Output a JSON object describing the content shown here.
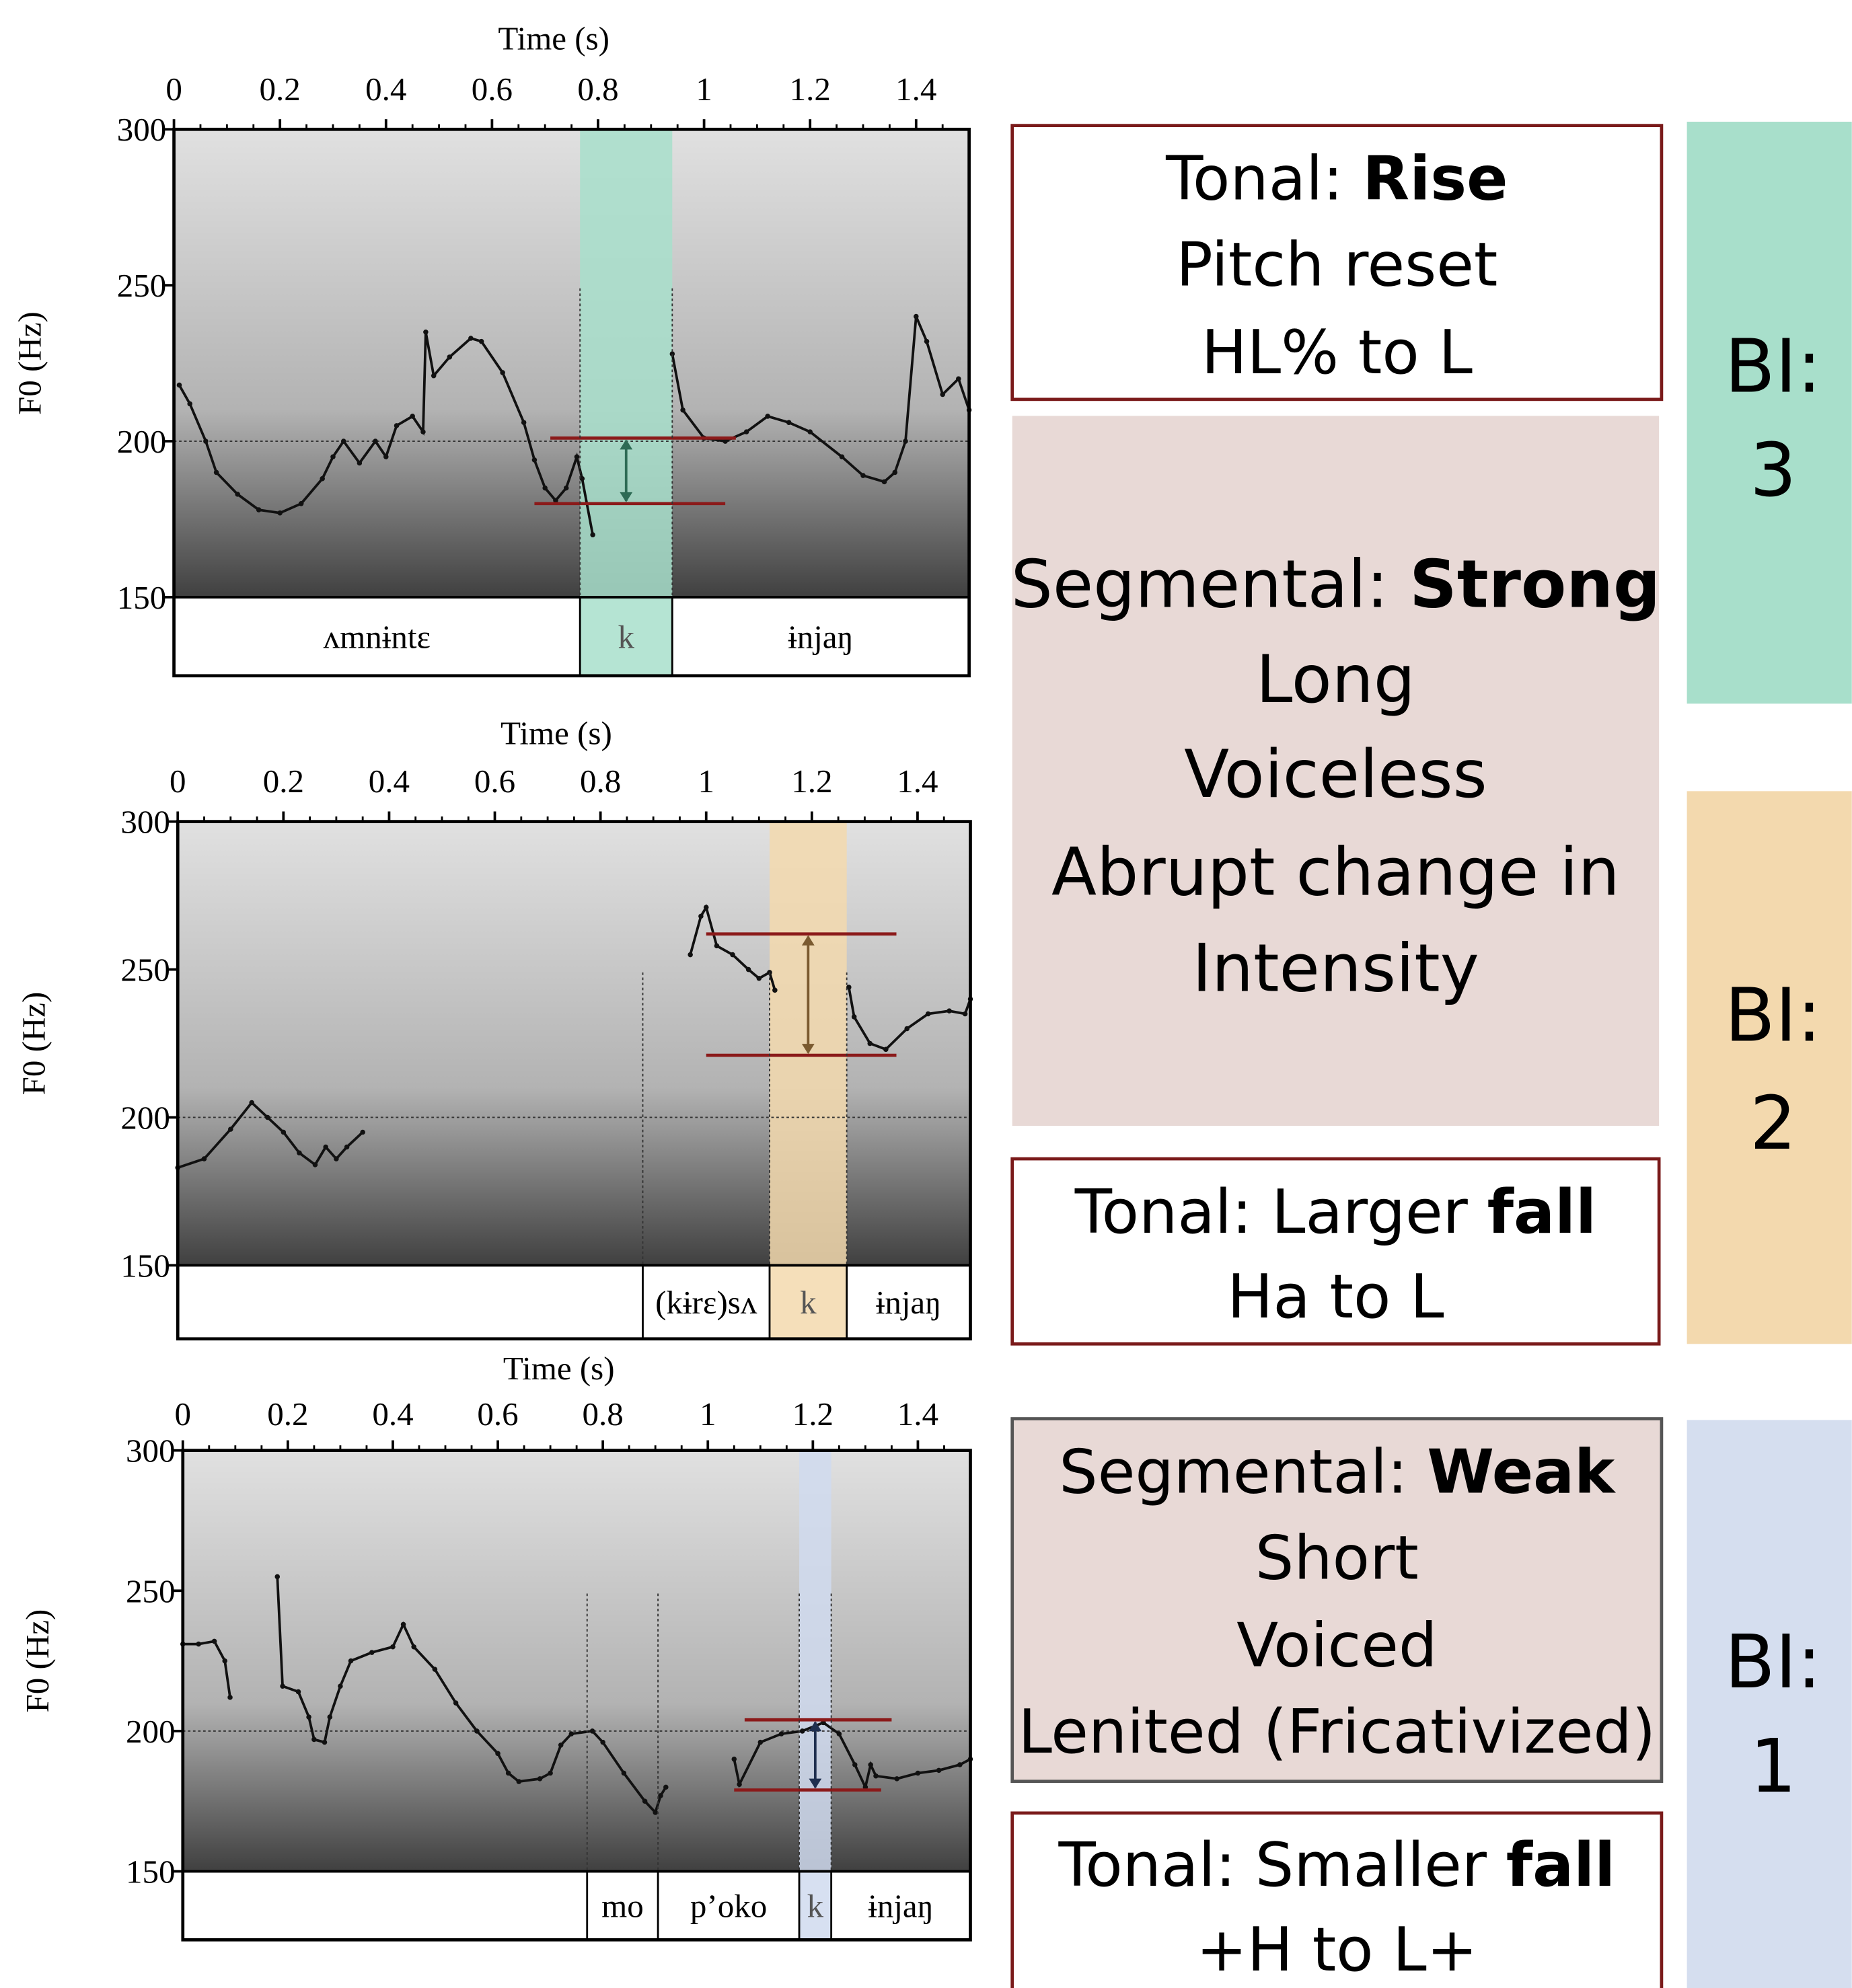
{
  "chart_data": [
    {
      "type": "line",
      "x_label": "Time (s)",
      "y_label": "F0 (Hz)",
      "xlim": [
        0,
        1.5
      ],
      "ylim": [
        150,
        300
      ],
      "xticks": [
        0,
        0.2,
        0.4,
        0.6,
        0.8,
        1,
        1.2,
        1.4
      ],
      "yticks": [
        150,
        200,
        250,
        300
      ],
      "hline": 200,
      "color": "#111111",
      "x": [
        0.01,
        0.03,
        0.06,
        0.08,
        0.12,
        0.16,
        0.2,
        0.24,
        0.28,
        0.3,
        0.32,
        0.35,
        0.38,
        0.4,
        0.42,
        0.45,
        0.47,
        0.475,
        0.49,
        0.52,
        0.56,
        0.58,
        0.62,
        0.66,
        0.68,
        0.7,
        0.72,
        0.74,
        0.76,
        0.77,
        0.79,
        0.85,
        0.94,
        0.96,
        1.0,
        1.04,
        1.08,
        1.12,
        1.16,
        1.2,
        1.26,
        1.3,
        1.34,
        1.36,
        1.38,
        1.4,
        1.42,
        1.45,
        1.48,
        1.5
      ],
      "values": [
        218,
        212,
        200,
        190,
        183,
        178,
        177,
        180,
        188,
        195,
        200,
        193,
        200,
        195,
        205,
        208,
        203,
        235,
        221,
        227,
        233,
        232,
        222,
        206,
        194,
        185,
        181,
        185,
        195,
        188,
        170,
        null,
        228,
        210,
        201,
        200,
        203,
        208,
        206,
        203,
        195,
        189,
        187,
        190,
        200,
        240,
        232,
        215,
        220,
        210
      ],
      "segments": [
        {
          "label": "ʌmnɨntɛ",
          "start": 0,
          "end": 0.766
        },
        {
          "label": "k",
          "start": 0.766,
          "end": 0.94,
          "color": "#a8dfcb"
        },
        {
          "label": "ɨnjaŋ",
          "start": 0.94,
          "end": 1.5
        }
      ],
      "ref_lines": [
        {
          "value": 201,
          "from": 0.71,
          "to": 1.06
        },
        {
          "value": 180,
          "from": 0.68,
          "to": 1.04
        }
      ],
      "ref_color": "#8b1a1a",
      "arrow_color": "#2e6b55"
    },
    {
      "type": "line",
      "x_label": "Time (s)",
      "y_label": "F0 (Hz)",
      "xlim": [
        0,
        1.5
      ],
      "ylim": [
        150,
        300
      ],
      "xticks": [
        0,
        0.2,
        0.4,
        0.6,
        0.8,
        1,
        1.2,
        1.4
      ],
      "yticks": [
        150,
        200,
        250,
        300
      ],
      "hline": 200,
      "color": "#111111",
      "x": [
        0,
        0.05,
        0.1,
        0.14,
        0.17,
        0.2,
        0.23,
        0.26,
        0.28,
        0.3,
        0.32,
        0.35,
        0.6,
        0.97,
        0.99,
        1.0,
        1.02,
        1.05,
        1.08,
        1.1,
        1.12,
        1.13,
        1.2,
        1.27,
        1.28,
        1.31,
        1.34,
        1.38,
        1.42,
        1.46,
        1.49,
        1.5
      ],
      "values": [
        183,
        186,
        196,
        205,
        200,
        195,
        188,
        184,
        190,
        186,
        190,
        195,
        null,
        255,
        268,
        271,
        258,
        255,
        250,
        247,
        249,
        243,
        null,
        244,
        234,
        225,
        223,
        230,
        235,
        236,
        235,
        240
      ],
      "segments": [
        {
          "label": null,
          "start": 0,
          "end": 0.88
        },
        {
          "label": "(kɨrɛ)sʌ",
          "start": 0.88,
          "end": 1.12
        },
        {
          "label": "k",
          "start": 1.12,
          "end": 1.266,
          "color": "#f3d9ae"
        },
        {
          "label": "ɨnjaŋ",
          "start": 1.266,
          "end": 1.5
        }
      ],
      "ref_lines": [
        {
          "value": 262,
          "from": 1.0,
          "to": 1.36
        },
        {
          "value": 221,
          "from": 1.0,
          "to": 1.36
        }
      ],
      "ref_color": "#8b1a1a",
      "arrow_color": "#7a5a30"
    },
    {
      "type": "line",
      "x_label": "Time (s)",
      "y_label": "F0 (Hz)",
      "xlim": [
        0,
        1.5
      ],
      "ylim": [
        150,
        300
      ],
      "xticks": [
        0,
        0.2,
        0.4,
        0.6,
        0.8,
        1,
        1.2,
        1.4
      ],
      "yticks": [
        150,
        200,
        250,
        300
      ],
      "hline": 200,
      "color": "#111111",
      "x": [
        0,
        0.03,
        0.06,
        0.08,
        0.09,
        0.14,
        0.18,
        0.19,
        0.22,
        0.24,
        0.25,
        0.27,
        0.28,
        0.3,
        0.32,
        0.36,
        0.4,
        0.42,
        0.44,
        0.48,
        0.52,
        0.56,
        0.6,
        0.62,
        0.64,
        0.68,
        0.7,
        0.72,
        0.74,
        0.78,
        0.8,
        0.84,
        0.88,
        0.9,
        0.91,
        0.92,
        1.0,
        1.05,
        1.06,
        1.1,
        1.14,
        1.18,
        1.22,
        1.25,
        1.28,
        1.3,
        1.31,
        1.32,
        1.36,
        1.4,
        1.44,
        1.48,
        1.5
      ],
      "values": [
        231,
        231,
        232,
        225,
        212,
        null,
        255,
        216,
        214,
        205,
        197,
        196,
        205,
        216,
        225,
        228,
        230,
        238,
        230,
        222,
        210,
        200,
        192,
        185,
        182,
        183,
        185,
        195,
        199,
        200,
        196,
        185,
        175,
        171,
        177,
        180,
        null,
        190,
        181,
        196,
        199,
        200,
        203,
        199,
        188,
        180,
        188,
        184,
        183,
        185,
        186,
        188,
        190
      ],
      "segments": [
        {
          "label": null,
          "start": 0,
          "end": 0.77
        },
        {
          "label": "mo",
          "start": 0.77,
          "end": 0.905
        },
        {
          "label": "p’oko",
          "start": 0.905,
          "end": 1.174
        },
        {
          "label": "k",
          "start": 1.174,
          "end": 1.235,
          "color": "#d0daee"
        },
        {
          "label": "ɨnjaŋ",
          "start": 1.235,
          "end": 1.5
        }
      ],
      "ref_lines": [
        {
          "value": 204,
          "from": 1.07,
          "to": 1.35
        },
        {
          "value": 179,
          "from": 1.05,
          "to": 1.33
        }
      ],
      "ref_color": "#8b1a1a",
      "arrow_color": "#1f2f4f"
    }
  ],
  "boxes": [
    {
      "lines": [
        {
          "plain": "Tonal: ",
          "bold": "Rise"
        },
        "Pitch reset",
        "HL% to L"
      ]
    },
    {
      "lines": [
        {
          "plain": "Segmental: ",
          "bold": "Strong"
        },
        "Long",
        "Voiceless",
        "Abrupt change in",
        "Intensity"
      ]
    },
    {
      "lines": [
        {
          "plain": "Tonal: Larger ",
          "bold": "fall"
        },
        "Ha to L"
      ]
    },
    {
      "lines": [
        {
          "plain": "Segmental: ",
          "bold": "Weak"
        },
        "Short",
        "Voiced",
        "Lenited (Fricativized)"
      ]
    },
    {
      "lines": [
        {
          "plain": "Tonal: Smaller ",
          "bold": "fall"
        },
        "+H to L+"
      ]
    }
  ],
  "break_indices": [
    {
      "lines": [
        "BI:",
        "3"
      ],
      "color": "#a8dfcb"
    },
    {
      "lines": [
        "BI:",
        "2"
      ],
      "color": "#f3d9ae"
    },
    {
      "lines": [
        "BI:",
        "1"
      ],
      "color": "#d5deef"
    }
  ]
}
